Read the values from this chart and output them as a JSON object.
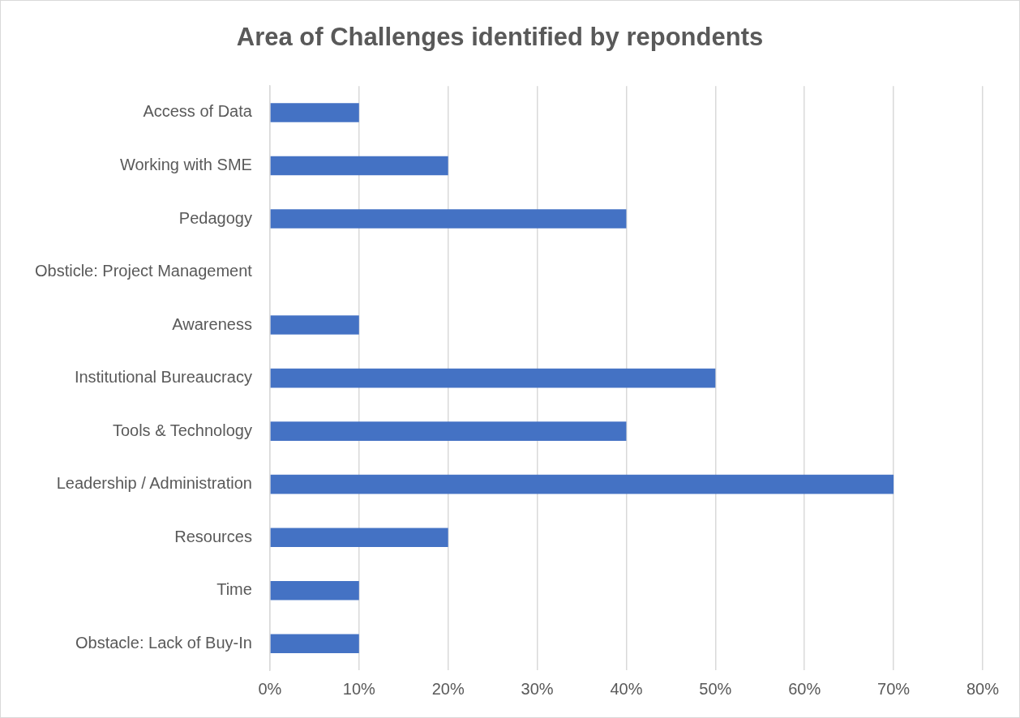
{
  "chart_data": {
    "type": "bar",
    "orientation": "horizontal",
    "title": "Area of Challenges identified by repondents",
    "categories": [
      "Access of Data",
      "Working with SME",
      "Pedagogy",
      "Obsticle: Project Management",
      "Awareness",
      "Institutional Bureaucracy",
      "Tools & Technology",
      "Leadership / Administration",
      "Resources",
      "Time",
      "Obstacle: Lack of Buy-In"
    ],
    "values": [
      10,
      20,
      40,
      0,
      10,
      50,
      40,
      70,
      20,
      10,
      10
    ],
    "color": "#4472c4",
    "xlim": [
      0,
      80
    ],
    "xticks": [
      {
        "value": 0,
        "label": "0%"
      },
      {
        "value": 10,
        "label": "10%"
      },
      {
        "value": 20,
        "label": "20%"
      },
      {
        "value": 30,
        "label": "30%"
      },
      {
        "value": 40,
        "label": "40%"
      },
      {
        "value": 50,
        "label": "50%"
      },
      {
        "value": 60,
        "label": "60%"
      },
      {
        "value": 70,
        "label": "70%"
      },
      {
        "value": 80,
        "label": "80%"
      }
    ],
    "grid": "x"
  }
}
